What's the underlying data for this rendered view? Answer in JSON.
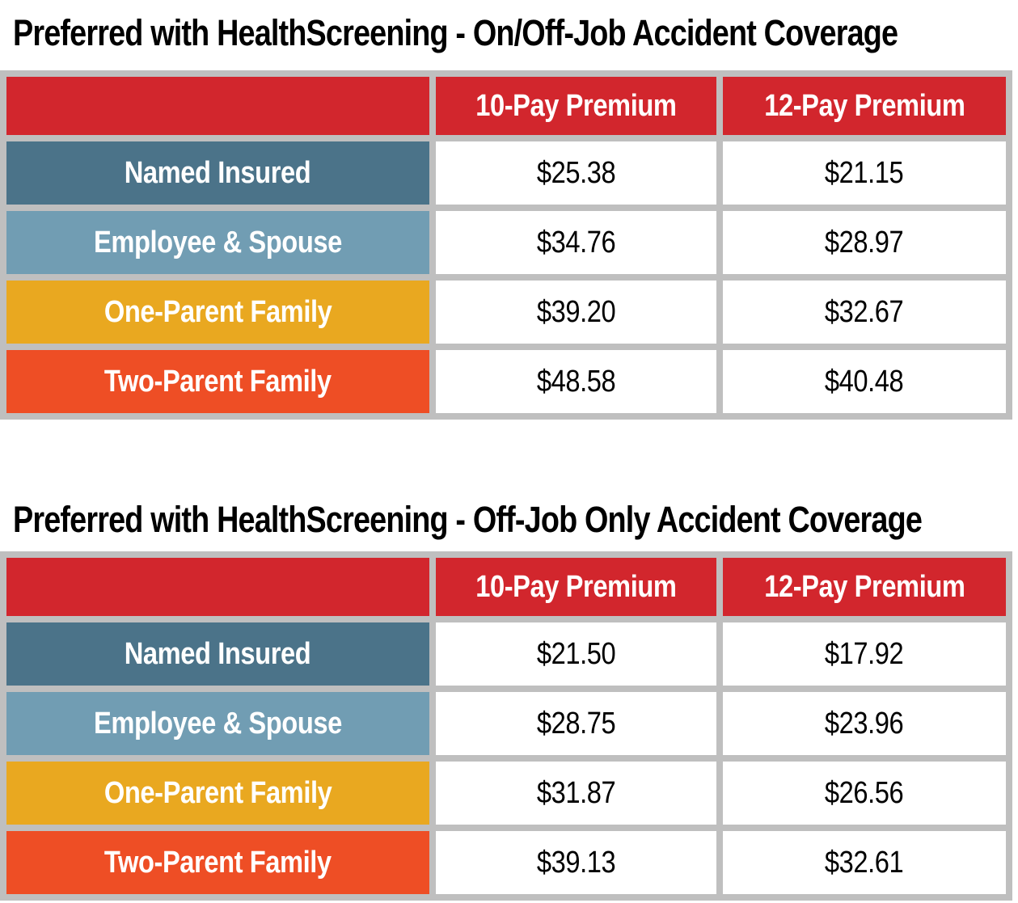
{
  "colors": {
    "header_red": "#D2262D",
    "slate_blue": "#4B7389",
    "light_blue": "#719DB3",
    "gold": "#E9A820",
    "orange": "#EE4E25",
    "grid_gray": "#BFBFBF",
    "cell_white": "#FFFFFF",
    "title_black": "#000000"
  },
  "tables": [
    {
      "title": "Preferred with HealthScreening - On/Off-Job Accident Coverage",
      "columns": [
        "",
        "10-Pay Premium",
        "12-Pay Premium"
      ],
      "rows": [
        {
          "label": "Named Insured",
          "color": "#4B7389",
          "pay10": "$25.38",
          "pay12": "$21.15"
        },
        {
          "label": "Employee & Spouse",
          "color": "#719DB3",
          "pay10": "$34.76",
          "pay12": "$28.97"
        },
        {
          "label": "One-Parent Family",
          "color": "#E9A820",
          "pay10": "$39.20",
          "pay12": "$32.67"
        },
        {
          "label": "Two-Parent Family",
          "color": "#EE4E25",
          "pay10": "$48.58",
          "pay12": "$40.48"
        }
      ]
    },
    {
      "title": "Preferred with HealthScreening - Off-Job Only Accident Coverage",
      "columns": [
        "",
        "10-Pay Premium",
        "12-Pay Premium"
      ],
      "rows": [
        {
          "label": "Named Insured",
          "color": "#4B7389",
          "pay10": "$21.50",
          "pay12": "$17.92"
        },
        {
          "label": "Employee & Spouse",
          "color": "#719DB3",
          "pay10": "$28.75",
          "pay12": "$23.96"
        },
        {
          "label": "One-Parent Family",
          "color": "#E9A820",
          "pay10": "$31.87",
          "pay12": "$26.56"
        },
        {
          "label": "Two-Parent Family",
          "color": "#EE4E25",
          "pay10": "$39.13",
          "pay12": "$32.61"
        }
      ]
    }
  ]
}
